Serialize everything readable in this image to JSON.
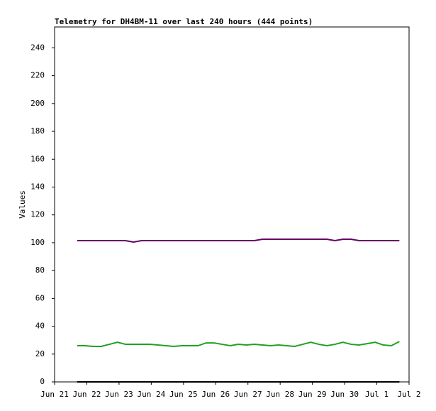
{
  "chart_data": {
    "type": "line",
    "title": "Telemetry for DH4BM-11 over last 240 hours (444 points)",
    "y_label": "Values",
    "xlim": [
      0,
      11
    ],
    "xticks": [
      {
        "value": 0,
        "label": "Jun 21"
      },
      {
        "value": 1,
        "label": "Jun 22"
      },
      {
        "value": 2,
        "label": "Jun 23"
      },
      {
        "value": 3,
        "label": "Jun 24"
      },
      {
        "value": 4,
        "label": "Jun 25"
      },
      {
        "value": 5,
        "label": "Jun 26"
      },
      {
        "value": 6,
        "label": "Jun 27"
      },
      {
        "value": 7,
        "label": "Jun 28"
      },
      {
        "value": 8,
        "label": "Jun 29"
      },
      {
        "value": 9,
        "label": "Jun 30"
      },
      {
        "value": 10,
        "label": "Jul 1"
      },
      {
        "value": 11,
        "label": "Jul 2"
      }
    ],
    "ylim": [
      0,
      255
    ],
    "yticks": [
      0,
      20,
      40,
      60,
      80,
      100,
      120,
      140,
      160,
      180,
      200,
      220,
      240
    ],
    "x": [
      0.7,
      0.95,
      1.2,
      1.45,
      1.7,
      1.95,
      2.2,
      2.45,
      2.7,
      2.95,
      3.2,
      3.45,
      3.7,
      3.95,
      4.2,
      4.45,
      4.7,
      4.95,
      5.2,
      5.45,
      5.7,
      5.95,
      6.2,
      6.45,
      6.7,
      6.95,
      7.2,
      7.45,
      7.7,
      7.95,
      8.2,
      8.45,
      8.7,
      8.95,
      9.2,
      9.45,
      9.7,
      9.95,
      10.2,
      10.45,
      10.7
    ],
    "series": [
      {
        "color": "#660066",
        "values": [
          101.5,
          101.5,
          101.5,
          101.5,
          101.5,
          101.5,
          101.5,
          100.5,
          101.5,
          101.5,
          101.5,
          101.5,
          101.5,
          101.5,
          101.5,
          101.5,
          101.5,
          101.5,
          101.5,
          101.5,
          101.5,
          101.5,
          101.5,
          102.5,
          102.5,
          102.5,
          102.5,
          102.5,
          102.5,
          102.5,
          102.5,
          102.5,
          101.5,
          102.5,
          102.5,
          101.5,
          101.5,
          101.5,
          101.5,
          101.5,
          101.5
        ]
      },
      {
        "color": "#22a022",
        "values": [
          26,
          26,
          25.5,
          25.5,
          27,
          28.5,
          27,
          27,
          27,
          27,
          26.5,
          26,
          25.5,
          26,
          26,
          26,
          28,
          28,
          27,
          26,
          27,
          26.5,
          27,
          26.5,
          26,
          26.5,
          26,
          25.5,
          27,
          28.5,
          27,
          26,
          27,
          28.5,
          27,
          26.5,
          27.5,
          28.5,
          26.5,
          26,
          29
        ]
      },
      {
        "color": "#000000",
        "values": [
          0,
          0,
          0,
          0,
          0,
          0,
          0,
          0,
          0,
          0,
          0,
          0,
          0,
          0,
          0,
          0,
          0,
          0,
          0,
          0,
          0,
          0,
          0,
          0,
          0,
          0,
          0,
          0,
          0,
          0,
          0,
          0,
          0,
          0,
          0,
          0,
          0,
          0,
          0,
          0,
          0
        ]
      }
    ]
  }
}
